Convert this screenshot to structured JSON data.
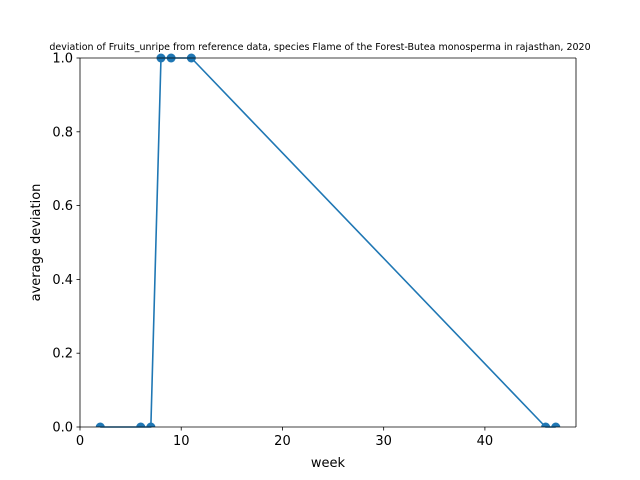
{
  "chart_data": {
    "type": "line",
    "title": "deviation of Fruits_unripe from reference data, species Flame of the Forest-Butea monosperma in rajasthan, 2020",
    "xlabel": "week",
    "ylabel": "average deviation",
    "xlim": [
      0,
      49
    ],
    "ylim": [
      0,
      1
    ],
    "x_ticks": [
      0,
      10,
      20,
      30,
      40
    ],
    "y_ticks": [
      0.0,
      0.2,
      0.4,
      0.6,
      0.8,
      1.0
    ],
    "x_tick_labels": [
      "0",
      "10",
      "20",
      "30",
      "40"
    ],
    "y_tick_labels": [
      "0.0",
      "0.2",
      "0.4",
      "0.6",
      "0.8",
      "1.0"
    ],
    "grid": false,
    "legend": "none",
    "series": [
      {
        "color": "#1f77b4",
        "marker": "circle",
        "x": [
          2,
          6,
          7,
          8,
          9,
          11,
          46,
          47
        ],
        "y": [
          0,
          0,
          0,
          1,
          1,
          1,
          0,
          0
        ]
      }
    ]
  }
}
